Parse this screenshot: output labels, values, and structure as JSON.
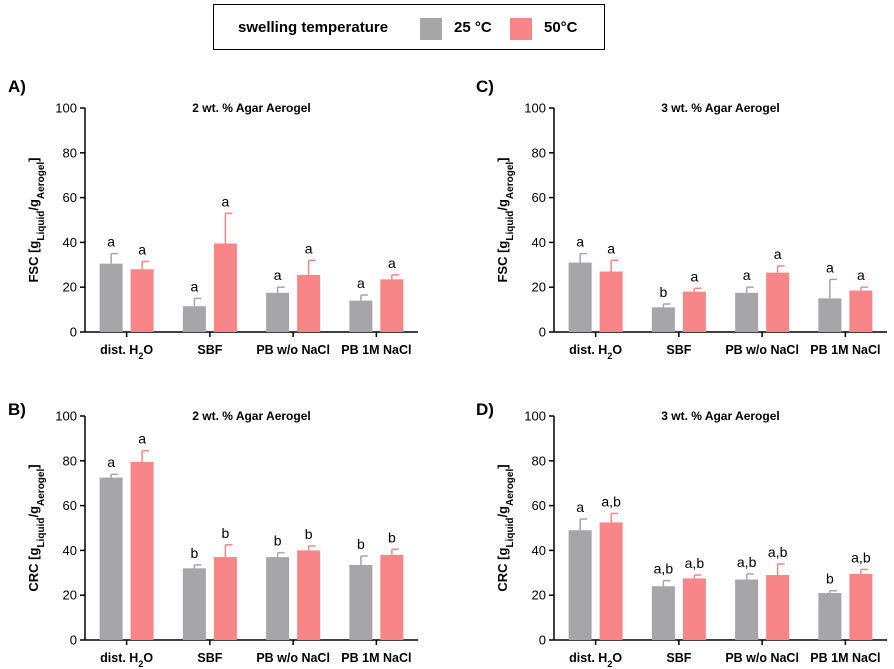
{
  "legend": {
    "title": "swelling temperature",
    "items": [
      {
        "label": "25 °C",
        "color": "#a5a5aa"
      },
      {
        "label": "50°C",
        "color": "#f88587"
      }
    ]
  },
  "chart_data": [
    {
      "panel": "A)",
      "type": "bar",
      "title": "2 wt. % Agar Aerogel",
      "ylabel": "FSC [gLiquid/gAerogel]",
      "ylim": [
        0,
        100
      ],
      "yticks": [
        0,
        20,
        40,
        60,
        80,
        100
      ],
      "categories": [
        "dist. H2O",
        "SBF",
        "PB w/o NaCl",
        "PB 1M NaCl"
      ],
      "series": [
        {
          "name": "25 °C",
          "values": [
            30.5,
            11.5,
            17.5,
            14
          ],
          "errors": [
            4.5,
            3.5,
            2.5,
            2.5
          ],
          "letters": [
            "a",
            "a",
            "a",
            "a"
          ]
        },
        {
          "name": "50°C",
          "values": [
            28,
            39.5,
            25.5,
            23.5
          ],
          "errors": [
            3.5,
            13.5,
            6.5,
            2
          ],
          "letters": [
            "a",
            "a",
            "a",
            "a"
          ]
        }
      ]
    },
    {
      "panel": "C)",
      "type": "bar",
      "title": "3 wt. % Agar Aerogel",
      "ylabel": "FSC [gLiquid/gAerogel]",
      "ylim": [
        0,
        100
      ],
      "yticks": [
        0,
        20,
        40,
        60,
        80,
        100
      ],
      "categories": [
        "dist. H2O",
        "SBF",
        "PB w/o NaCl",
        "PB 1M NaCl"
      ],
      "series": [
        {
          "name": "25 °C",
          "values": [
            31,
            11,
            17.5,
            15
          ],
          "errors": [
            4,
            1.5,
            2.5,
            8.5
          ],
          "letters": [
            "a",
            "b",
            "a",
            "a"
          ]
        },
        {
          "name": "50°C",
          "values": [
            27,
            18,
            26.5,
            18.5
          ],
          "errors": [
            5,
            1.5,
            3,
            1.5
          ],
          "letters": [
            "a",
            "a",
            "a",
            "a"
          ]
        }
      ]
    },
    {
      "panel": "B)",
      "type": "bar",
      "title": "2 wt. % Agar Aerogel",
      "ylabel": "CRC [gLiquid/gAerogel]",
      "ylim": [
        0,
        100
      ],
      "yticks": [
        0,
        20,
        40,
        60,
        80,
        100
      ],
      "categories": [
        "dist. H2O",
        "SBF",
        "PB w/o NaCl",
        "PB 1M NaCl"
      ],
      "series": [
        {
          "name": "25 °C",
          "values": [
            72.5,
            32,
            37,
            33.5
          ],
          "errors": [
            1.5,
            1.5,
            2,
            4
          ],
          "letters": [
            "a",
            "b",
            "b",
            "b"
          ]
        },
        {
          "name": "50°C",
          "values": [
            79.5,
            37,
            40,
            38
          ],
          "errors": [
            5,
            5.5,
            2,
            2.5
          ],
          "letters": [
            "a",
            "b",
            "b",
            "b"
          ]
        }
      ]
    },
    {
      "panel": "D)",
      "type": "bar",
      "title": "3 wt. % Agar Aerogel",
      "ylabel": "CRC [gLiquid/gAerogel]",
      "ylim": [
        0,
        100
      ],
      "yticks": [
        0,
        20,
        40,
        60,
        80,
        100
      ],
      "categories": [
        "dist. H2O",
        "SBF",
        "PB w/o NaCl",
        "PB 1M NaCl"
      ],
      "series": [
        {
          "name": "25 °C",
          "values": [
            49,
            24,
            27,
            21
          ],
          "errors": [
            5,
            2.5,
            2.5,
            1
          ],
          "letters": [
            "a",
            "a,b",
            "a,b",
            "b"
          ]
        },
        {
          "name": "50°C",
          "values": [
            52.5,
            27.5,
            29,
            29.5
          ],
          "errors": [
            4,
            1.5,
            5,
            2
          ],
          "letters": [
            "a,b",
            "a,b",
            "a,b",
            "a,b"
          ]
        }
      ]
    }
  ]
}
